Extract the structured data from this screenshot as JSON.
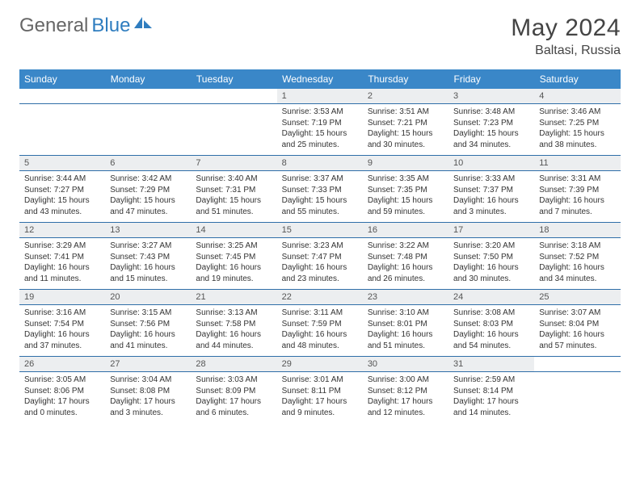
{
  "brand": {
    "part1": "General",
    "part2": "Blue"
  },
  "title": "May 2024",
  "location": "Baltasi, Russia",
  "dayHeaders": [
    "Sunday",
    "Monday",
    "Tuesday",
    "Wednesday",
    "Thursday",
    "Friday",
    "Saturday"
  ],
  "colors": {
    "headerBg": "#3a87c8",
    "rowBorder": "#2f6ea8",
    "dayNumBg": "#eceef0",
    "brandBlue": "#2f7dbf"
  },
  "weeks": [
    [
      null,
      null,
      null,
      {
        "n": "1",
        "sunrise": "3:53 AM",
        "sunset": "7:19 PM",
        "daylight": "15 hours and 25 minutes."
      },
      {
        "n": "2",
        "sunrise": "3:51 AM",
        "sunset": "7:21 PM",
        "daylight": "15 hours and 30 minutes."
      },
      {
        "n": "3",
        "sunrise": "3:48 AM",
        "sunset": "7:23 PM",
        "daylight": "15 hours and 34 minutes."
      },
      {
        "n": "4",
        "sunrise": "3:46 AM",
        "sunset": "7:25 PM",
        "daylight": "15 hours and 38 minutes."
      }
    ],
    [
      {
        "n": "5",
        "sunrise": "3:44 AM",
        "sunset": "7:27 PM",
        "daylight": "15 hours and 43 minutes."
      },
      {
        "n": "6",
        "sunrise": "3:42 AM",
        "sunset": "7:29 PM",
        "daylight": "15 hours and 47 minutes."
      },
      {
        "n": "7",
        "sunrise": "3:40 AM",
        "sunset": "7:31 PM",
        "daylight": "15 hours and 51 minutes."
      },
      {
        "n": "8",
        "sunrise": "3:37 AM",
        "sunset": "7:33 PM",
        "daylight": "15 hours and 55 minutes."
      },
      {
        "n": "9",
        "sunrise": "3:35 AM",
        "sunset": "7:35 PM",
        "daylight": "15 hours and 59 minutes."
      },
      {
        "n": "10",
        "sunrise": "3:33 AM",
        "sunset": "7:37 PM",
        "daylight": "16 hours and 3 minutes."
      },
      {
        "n": "11",
        "sunrise": "3:31 AM",
        "sunset": "7:39 PM",
        "daylight": "16 hours and 7 minutes."
      }
    ],
    [
      {
        "n": "12",
        "sunrise": "3:29 AM",
        "sunset": "7:41 PM",
        "daylight": "16 hours and 11 minutes."
      },
      {
        "n": "13",
        "sunrise": "3:27 AM",
        "sunset": "7:43 PM",
        "daylight": "16 hours and 15 minutes."
      },
      {
        "n": "14",
        "sunrise": "3:25 AM",
        "sunset": "7:45 PM",
        "daylight": "16 hours and 19 minutes."
      },
      {
        "n": "15",
        "sunrise": "3:23 AM",
        "sunset": "7:47 PM",
        "daylight": "16 hours and 23 minutes."
      },
      {
        "n": "16",
        "sunrise": "3:22 AM",
        "sunset": "7:48 PM",
        "daylight": "16 hours and 26 minutes."
      },
      {
        "n": "17",
        "sunrise": "3:20 AM",
        "sunset": "7:50 PM",
        "daylight": "16 hours and 30 minutes."
      },
      {
        "n": "18",
        "sunrise": "3:18 AM",
        "sunset": "7:52 PM",
        "daylight": "16 hours and 34 minutes."
      }
    ],
    [
      {
        "n": "19",
        "sunrise": "3:16 AM",
        "sunset": "7:54 PM",
        "daylight": "16 hours and 37 minutes."
      },
      {
        "n": "20",
        "sunrise": "3:15 AM",
        "sunset": "7:56 PM",
        "daylight": "16 hours and 41 minutes."
      },
      {
        "n": "21",
        "sunrise": "3:13 AM",
        "sunset": "7:58 PM",
        "daylight": "16 hours and 44 minutes."
      },
      {
        "n": "22",
        "sunrise": "3:11 AM",
        "sunset": "7:59 PM",
        "daylight": "16 hours and 48 minutes."
      },
      {
        "n": "23",
        "sunrise": "3:10 AM",
        "sunset": "8:01 PM",
        "daylight": "16 hours and 51 minutes."
      },
      {
        "n": "24",
        "sunrise": "3:08 AM",
        "sunset": "8:03 PM",
        "daylight": "16 hours and 54 minutes."
      },
      {
        "n": "25",
        "sunrise": "3:07 AM",
        "sunset": "8:04 PM",
        "daylight": "16 hours and 57 minutes."
      }
    ],
    [
      {
        "n": "26",
        "sunrise": "3:05 AM",
        "sunset": "8:06 PM",
        "daylight": "17 hours and 0 minutes."
      },
      {
        "n": "27",
        "sunrise": "3:04 AM",
        "sunset": "8:08 PM",
        "daylight": "17 hours and 3 minutes."
      },
      {
        "n": "28",
        "sunrise": "3:03 AM",
        "sunset": "8:09 PM",
        "daylight": "17 hours and 6 minutes."
      },
      {
        "n": "29",
        "sunrise": "3:01 AM",
        "sunset": "8:11 PM",
        "daylight": "17 hours and 9 minutes."
      },
      {
        "n": "30",
        "sunrise": "3:00 AM",
        "sunset": "8:12 PM",
        "daylight": "17 hours and 12 minutes."
      },
      {
        "n": "31",
        "sunrise": "2:59 AM",
        "sunset": "8:14 PM",
        "daylight": "17 hours and 14 minutes."
      },
      null
    ]
  ],
  "labels": {
    "sunrise": "Sunrise: ",
    "sunset": "Sunset: ",
    "daylight": "Daylight: "
  }
}
